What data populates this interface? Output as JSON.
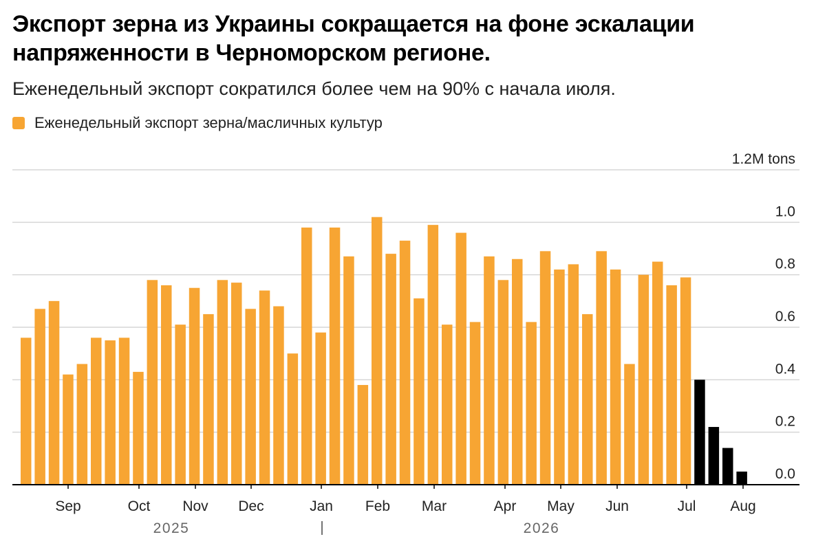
{
  "header": {
    "title": "Экспорт зерна из Украины сокращается на фоне эскалации напряженности в Черноморском регионе.",
    "subtitle": "Еженедельный экспорт сократился более чем на 90% с начала июля."
  },
  "legend": {
    "label": "Еженедельный экспорт зерна/масличных культур",
    "color": "#F7A533"
  },
  "chart_data": {
    "type": "bar",
    "colors": {
      "bar": "#F7A533",
      "highlight": "#000000",
      "grid": "#d6d6d6",
      "baseline": "#000000"
    },
    "unit": "tons",
    "y_ticks": [
      "0.0",
      "0.2",
      "0.4",
      "0.6",
      "0.8",
      "1.0",
      "1.2M tons"
    ],
    "ylim": [
      0,
      1.2
    ],
    "grid": true,
    "x_month_labels": [
      "Sep",
      "Oct",
      "Nov",
      "Dec",
      "Jan",
      "Feb",
      "Mar",
      "Apr",
      "May",
      "Jun",
      "Jul",
      "Aug"
    ],
    "years": [
      "2025",
      "2026"
    ],
    "series": [
      {
        "values": [
          0.56,
          0.67,
          0.7,
          0.42,
          0.46,
          0.56,
          0.55,
          0.56,
          0.43,
          0.78,
          0.76,
          0.61,
          0.75,
          0.65,
          0.78,
          0.77,
          0.67,
          0.74,
          0.68,
          0.5,
          0.98,
          0.58,
          0.98,
          0.87,
          0.38,
          1.02,
          0.88,
          0.93,
          0.71,
          0.99,
          0.61,
          0.96,
          0.62,
          0.87,
          0.78,
          0.86,
          0.62,
          0.89,
          0.82,
          0.84,
          0.65,
          0.89,
          0.82,
          0.46,
          0.8,
          0.85,
          0.76,
          0.79,
          0.4,
          0.22,
          0.14,
          0.05
        ],
        "highlight_from_index": 48
      }
    ]
  }
}
